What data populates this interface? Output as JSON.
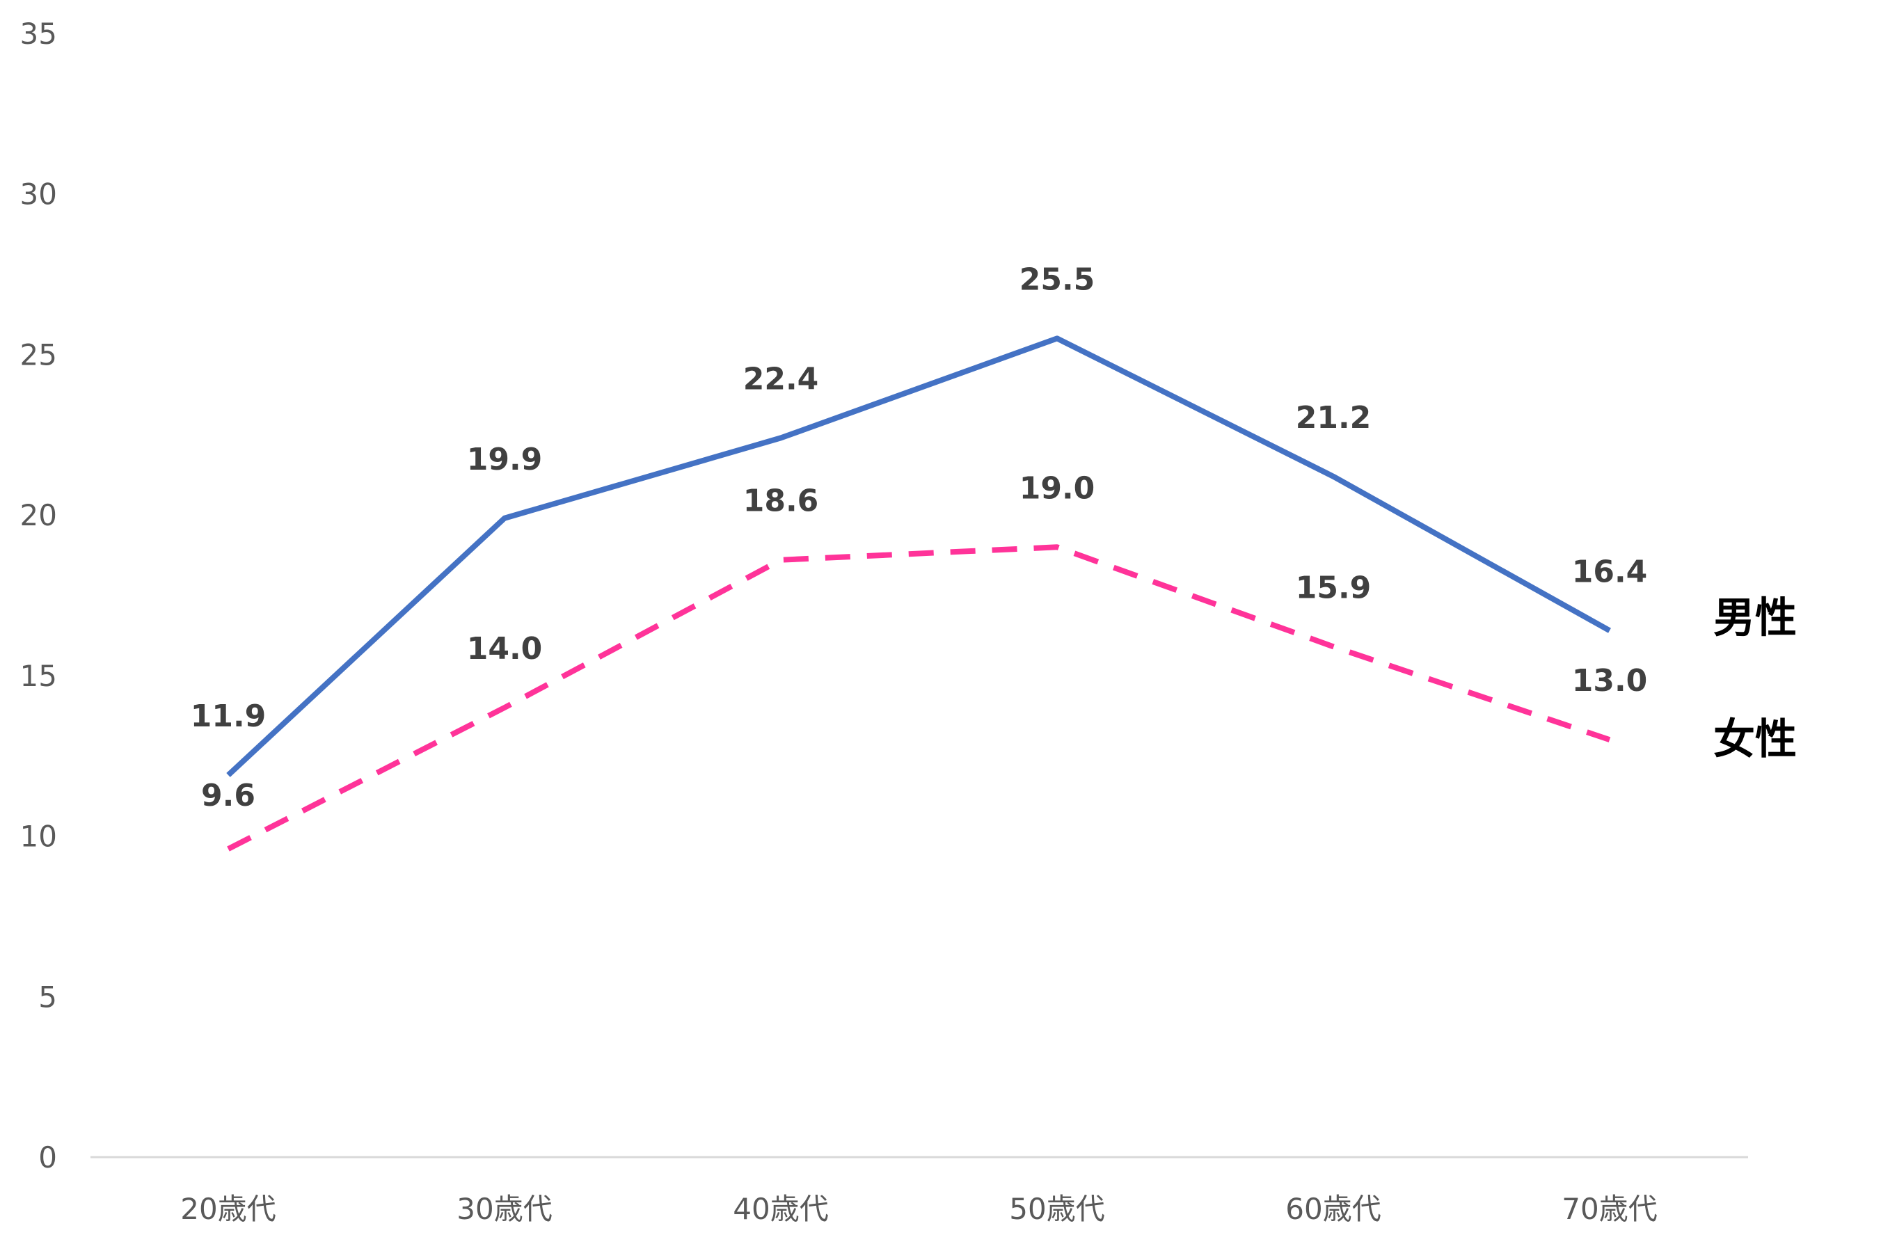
{
  "chart_data": {
    "type": "line",
    "categories": [
      "20歳代",
      "30歳代",
      "40歳代",
      "50歳代",
      "60歳代",
      "70歳代"
    ],
    "series": [
      {
        "name": "男性",
        "values": [
          11.9,
          19.9,
          22.4,
          25.5,
          21.2,
          16.4
        ],
        "value_labels": [
          "11.9",
          "19.9",
          "22.4",
          "25.5",
          "21.2",
          "16.4"
        ],
        "color": "#4472C4",
        "line_style": "solid"
      },
      {
        "name": "女性",
        "values": [
          9.6,
          14.0,
          18.6,
          19.0,
          15.9,
          13.0
        ],
        "value_labels": [
          "9.6",
          "14.0",
          "18.6",
          "19.0",
          "15.9",
          "13.0"
        ],
        "color": "#FF3399",
        "line_style": "dashed"
      }
    ],
    "ylim": [
      0,
      35
    ],
    "yticks": [
      "0",
      "5",
      "10",
      "15",
      "20",
      "25",
      "30",
      "35"
    ],
    "ytick_values": [
      0,
      5,
      10,
      15,
      20,
      25,
      30,
      35
    ],
    "grid": false,
    "legend": "series names at right end of lines",
    "title": "",
    "xlabel": "",
    "ylabel": ""
  }
}
